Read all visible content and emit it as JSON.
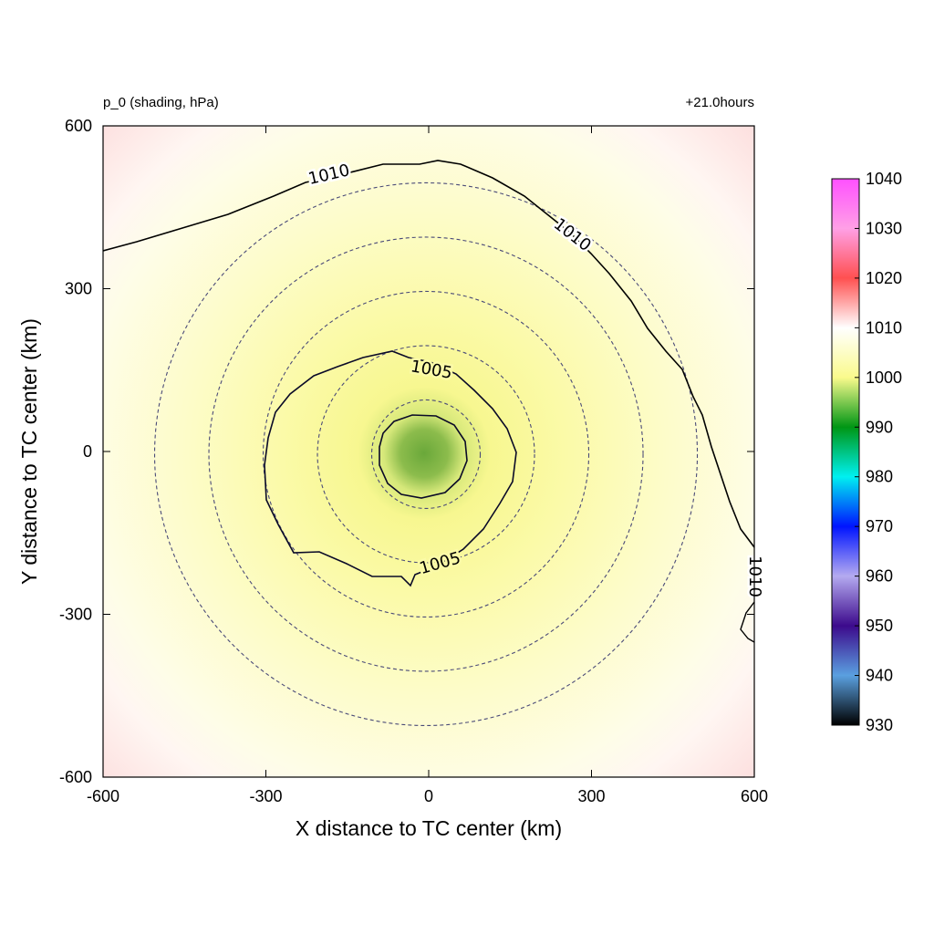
{
  "chart_data": {
    "type": "heatmap",
    "title_left": "p_0 (shading, hPa)",
    "title_right": "+21.0hours",
    "xlabel": "X distance to TC center (km)",
    "ylabel": "Y distance to TC center (km)",
    "xlim": [
      -600,
      600
    ],
    "ylim": [
      -600,
      600
    ],
    "xticks": [
      "-600",
      "-300",
      "0",
      "300",
      "600"
    ],
    "yticks": [
      "600",
      "300",
      "0",
      "-300",
      "-600"
    ],
    "xtick_values": [
      -600,
      -300,
      0,
      300,
      600
    ],
    "ytick_values": [
      600,
      300,
      0,
      -300,
      -600
    ],
    "center_pressure": 993,
    "range_circles_km": [
      100,
      200,
      300,
      400,
      500
    ],
    "contours": [
      {
        "level": 1005,
        "labels": [
          "1005",
          "1005"
        ]
      },
      {
        "level": 1010,
        "labels": [
          "1010",
          "1010",
          "1010"
        ]
      }
    ],
    "colorbar": {
      "min": 930,
      "max": 1040,
      "tick_values": [
        1040,
        1030,
        1020,
        1010,
        1000,
        990,
        980,
        970,
        960,
        950,
        940,
        930
      ],
      "tick_labels": [
        "1040",
        "1030",
        "1020",
        "1010",
        "1000",
        "990",
        "980",
        "970",
        "960",
        "950",
        "940",
        "930"
      ],
      "color_stops": [
        {
          "value": 930,
          "color": "#000000"
        },
        {
          "value": 940,
          "color": "#5aa0e0"
        },
        {
          "value": 950,
          "color": "#3c0a8c"
        },
        {
          "value": 960,
          "color": "#b4aaf0"
        },
        {
          "value": 970,
          "color": "#0014ff"
        },
        {
          "value": 980,
          "color": "#00f0f0"
        },
        {
          "value": 990,
          "color": "#009614"
        },
        {
          "value": 1000,
          "color": "#fafa8c"
        },
        {
          "value": 1010,
          "color": "#ffffff"
        },
        {
          "value": 1020,
          "color": "#ff5050"
        },
        {
          "value": 1030,
          "color": "#ffa0e6"
        },
        {
          "value": 1040,
          "color": "#ff50ff"
        }
      ]
    }
  }
}
